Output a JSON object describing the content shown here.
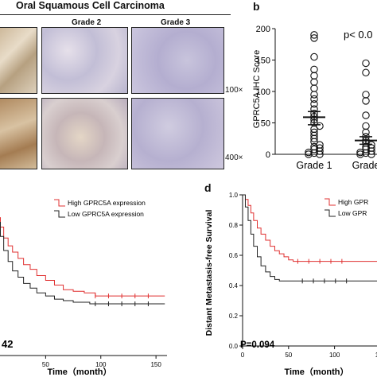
{
  "panel_a": {
    "title": "Oral Squamous Cell Carcinoma",
    "columns": [
      "Grade 2",
      "Grade 3"
    ],
    "magnifications": [
      "100×",
      "400×"
    ]
  },
  "panel_b": {
    "label": "b"
  },
  "panel_d": {
    "label": "d"
  },
  "chart_data": [
    {
      "type": "scatter",
      "panel": "b",
      "ylabel": "GPRC5A IHC Score",
      "ylim": [
        0,
        200
      ],
      "yticks": [
        0,
        50,
        100,
        150,
        200
      ],
      "annotation": "p< 0.0",
      "categories": [
        "Grade 1",
        "Grade"
      ],
      "groups": [
        {
          "category": "Grade 1",
          "values": [
            190,
            185,
            155,
            135,
            125,
            115,
            105,
            95,
            88,
            80,
            72,
            65,
            60,
            55,
            50,
            45,
            40,
            35,
            30,
            25,
            20,
            15,
            12,
            10,
            8,
            5,
            3,
            2,
            0,
            0
          ],
          "mean": 59,
          "sem_low": 47,
          "sem_high": 68
        },
        {
          "category": "Grade",
          "values": [
            145,
            130,
            95,
            85,
            62,
            45,
            35,
            28,
            22,
            18,
            15,
            12,
            10,
            8,
            5,
            3,
            2,
            0,
            0
          ],
          "mean": 22,
          "sem_low": 16,
          "sem_high": 28
        }
      ]
    },
    {
      "type": "line",
      "panel": "c",
      "xlabel": "Time（month）",
      "xlim": [
        0,
        160
      ],
      "xticks": [
        0,
        50,
        100,
        150
      ],
      "p_value_text": "42",
      "legend": [
        "High GPRC5A expression",
        "Low GPRC5A expression"
      ],
      "series": [
        {
          "name": "High GPRC5A expression",
          "color": "#e03030",
          "x": [
            0,
            3,
            6,
            9,
            12,
            16,
            20,
            25,
            30,
            36,
            42,
            50,
            58,
            66,
            75,
            85,
            95,
            110,
            125,
            140,
            158
          ],
          "y": [
            1.0,
            0.95,
            0.88,
            0.82,
            0.75,
            0.7,
            0.66,
            0.62,
            0.58,
            0.55,
            0.51,
            0.48,
            0.45,
            0.42,
            0.41,
            0.4,
            0.38,
            0.38,
            0.38,
            0.38,
            0.38
          ]
        },
        {
          "name": "Low GPRC5A expression",
          "color": "#222222",
          "x": [
            0,
            3,
            6,
            9,
            12,
            16,
            20,
            25,
            30,
            36,
            42,
            50,
            58,
            66,
            75,
            90,
            105,
            125,
            145,
            158
          ],
          "y": [
            1.0,
            0.93,
            0.85,
            0.76,
            0.67,
            0.6,
            0.54,
            0.5,
            0.46,
            0.43,
            0.4,
            0.38,
            0.36,
            0.35,
            0.34,
            0.33,
            0.33,
            0.33,
            0.33,
            0.33
          ]
        }
      ]
    },
    {
      "type": "line",
      "panel": "d",
      "ylabel": "Distant Metastasis-free Survival",
      "xlabel": "Time（month）",
      "ylim": [
        0,
        1.0
      ],
      "yticks": [
        0.0,
        0.2,
        0.4,
        0.6,
        0.8,
        1.0
      ],
      "xlim": [
        0,
        160
      ],
      "xticks": [
        0,
        50,
        100,
        150
      ],
      "p_value_text": "P=0.094",
      "legend": [
        "High GPR",
        "Low GPR"
      ],
      "series": [
        {
          "name": "High GPR",
          "color": "#e03030",
          "x": [
            0,
            3,
            6,
            9,
            12,
            16,
            20,
            25,
            30,
            35,
            40,
            45,
            50,
            55,
            60,
            80,
            100,
            125,
            160
          ],
          "y": [
            1.0,
            0.97,
            0.93,
            0.88,
            0.83,
            0.78,
            0.74,
            0.7,
            0.66,
            0.63,
            0.61,
            0.59,
            0.57,
            0.56,
            0.56,
            0.56,
            0.56,
            0.56,
            0.56
          ]
        },
        {
          "name": "Low GPR",
          "color": "#222222",
          "x": [
            0,
            3,
            6,
            9,
            12,
            16,
            20,
            25,
            30,
            35,
            40,
            60,
            80,
            100,
            125,
            160
          ],
          "y": [
            1.0,
            0.92,
            0.83,
            0.74,
            0.66,
            0.59,
            0.53,
            0.49,
            0.46,
            0.44,
            0.43,
            0.43,
            0.43,
            0.43,
            0.43,
            0.43
          ]
        }
      ]
    }
  ]
}
